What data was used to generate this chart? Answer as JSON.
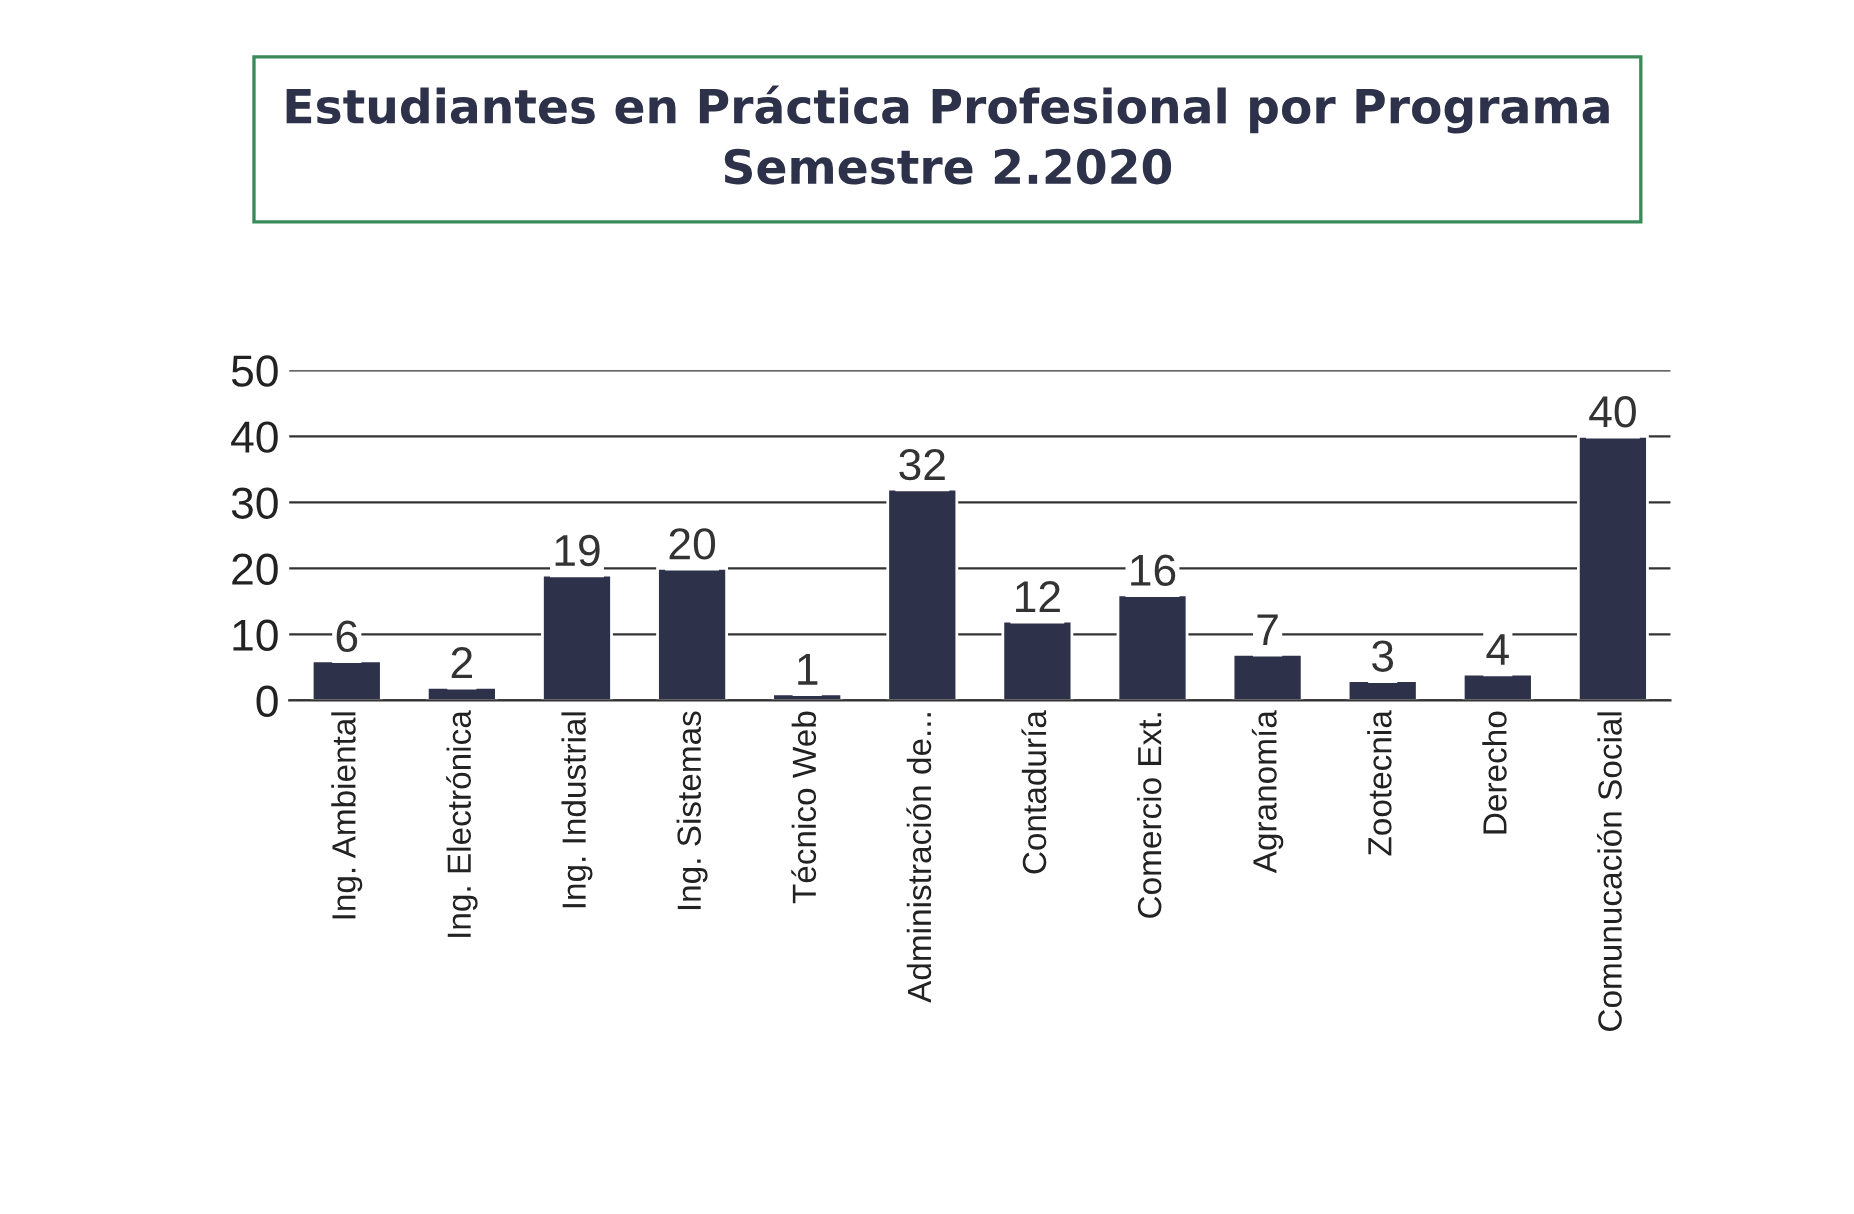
{
  "chart_data": {
    "type": "bar",
    "title": "Estudiantes en Práctica Profesional por Programa\nSemestre 2.2020",
    "categories": [
      "Ing. Ambiental",
      "Ing. Electrónica",
      "Ing. Industrial",
      "Ing. Sistemas",
      "Técnico Web",
      "Administración de...",
      "Contaduría",
      "Comercio Ext.",
      "Agranomía",
      "Zootecnia",
      "Derecho",
      "Comunucación Social"
    ],
    "values": [
      6,
      2,
      19,
      20,
      1,
      32,
      12,
      16,
      7,
      3,
      4,
      40
    ],
    "color": "#2d3149",
    "ylim": [
      0,
      50
    ],
    "yticks": [
      0,
      10,
      20,
      30,
      40,
      50
    ],
    "grid": "y",
    "data_labels": true
  }
}
